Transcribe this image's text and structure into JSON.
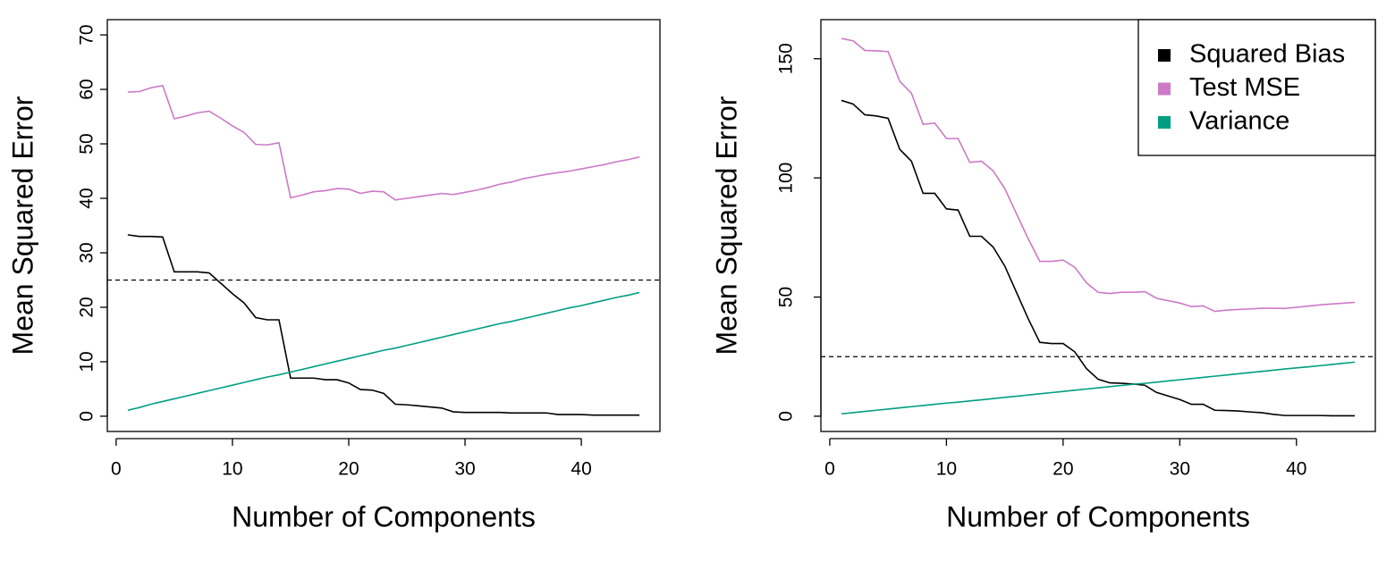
{
  "chart_data": [
    {
      "type": "line",
      "xlabel": "Number of Components",
      "ylabel": "Mean Squared Error",
      "x": [
        1,
        2,
        3,
        4,
        5,
        6,
        7,
        8,
        9,
        10,
        11,
        12,
        13,
        14,
        15,
        16,
        17,
        18,
        19,
        20,
        21,
        22,
        23,
        24,
        25,
        26,
        27,
        28,
        29,
        30,
        31,
        32,
        33,
        34,
        35,
        36,
        37,
        38,
        39,
        40,
        41,
        42,
        43,
        44,
        45
      ],
      "series": [
        {
          "name": "Squared Bias",
          "color": "#000000",
          "values": [
            33.3,
            33.0,
            33.0,
            32.9,
            26.5,
            26.5,
            26.5,
            26.3,
            24.4,
            22.5,
            20.8,
            18.1,
            17.7,
            17.7,
            7.0,
            7.0,
            7.0,
            6.7,
            6.7,
            6.1,
            4.9,
            4.8,
            4.2,
            2.2,
            2.1,
            1.9,
            1.7,
            1.5,
            0.8,
            0.7,
            0.7,
            0.7,
            0.7,
            0.6,
            0.6,
            0.6,
            0.6,
            0.3,
            0.3,
            0.3,
            0.2,
            0.2,
            0.2,
            0.2,
            0.2
          ]
        },
        {
          "name": "Test MSE",
          "color": "#CC79C7",
          "values": [
            59.5,
            59.6,
            60.3,
            60.7,
            54.6,
            55.1,
            55.7,
            56.0,
            54.7,
            53.3,
            52.1,
            49.9,
            49.8,
            50.2,
            40.1,
            40.6,
            41.2,
            41.4,
            41.8,
            41.7,
            40.9,
            41.3,
            41.2,
            39.7,
            40.0,
            40.3,
            40.6,
            40.9,
            40.7,
            41.1,
            41.5,
            42.0,
            42.6,
            43.0,
            43.6,
            44.0,
            44.4,
            44.7,
            45.0,
            45.4,
            45.8,
            46.2,
            46.7,
            47.1,
            47.6
          ]
        },
        {
          "name": "Variance",
          "color": "#009E83",
          "values": [
            1.1,
            1.6,
            2.2,
            2.7,
            3.2,
            3.7,
            4.2,
            4.7,
            5.2,
            5.7,
            6.2,
            6.7,
            7.2,
            7.6,
            8.1,
            8.6,
            9.1,
            9.6,
            10.1,
            10.6,
            11.1,
            11.6,
            12.1,
            12.5,
            13.0,
            13.5,
            14.0,
            14.5,
            15.0,
            15.5,
            16.0,
            16.5,
            17.0,
            17.4,
            17.9,
            18.4,
            18.9,
            19.4,
            19.9,
            20.3,
            20.8,
            21.3,
            21.8,
            22.2,
            22.7
          ]
        }
      ],
      "xlim": [
        -0.76,
        46.76
      ],
      "ylim": [
        -2.8,
        72.8
      ],
      "xticks": [
        0,
        10,
        20,
        30,
        40
      ],
      "yticks": [
        0,
        10,
        20,
        30,
        40,
        50,
        60,
        70
      ],
      "hline": 25
    },
    {
      "type": "line",
      "xlabel": "Number of Components",
      "ylabel": "Mean Squared Error",
      "x": [
        1,
        2,
        3,
        4,
        5,
        6,
        7,
        8,
        9,
        10,
        11,
        12,
        13,
        14,
        15,
        16,
        17,
        18,
        19,
        20,
        21,
        22,
        23,
        24,
        25,
        26,
        27,
        28,
        29,
        30,
        31,
        32,
        33,
        34,
        35,
        36,
        37,
        38,
        39,
        40,
        41,
        42,
        43,
        44,
        45
      ],
      "series": [
        {
          "name": "Squared Bias",
          "color": "#000000",
          "values": [
            132.5,
            131,
            126.5,
            126,
            125,
            112,
            107,
            93.5,
            93.5,
            87,
            86.5,
            75.5,
            75.5,
            71,
            63,
            52,
            41,
            31,
            30.5,
            30.5,
            27,
            20,
            15.5,
            14,
            13.8,
            13.5,
            13,
            10,
            8.5,
            7,
            5,
            5,
            2.5,
            2.4,
            2.2,
            1.8,
            1.5,
            0.8,
            0.3,
            0.3,
            0.3,
            0.3,
            0.2,
            0.2,
            0.2
          ]
        },
        {
          "name": "Test MSE",
          "color": "#CC79C7",
          "values": [
            158.5,
            157.5,
            153.5,
            153.3,
            153,
            140.5,
            135.5,
            122.5,
            123,
            116.5,
            116.5,
            106.5,
            107,
            103,
            95.5,
            85,
            74.5,
            65,
            65,
            65.5,
            62.5,
            56,
            52,
            51.5,
            52,
            52,
            52.3,
            49.5,
            48.5,
            47.5,
            46,
            46.3,
            44,
            44.5,
            44.8,
            45,
            45.3,
            45.3,
            45.2,
            45.7,
            46.2,
            46.7,
            47.1,
            47.4,
            47.8
          ]
        },
        {
          "name": "Variance",
          "color": "#009E83",
          "values": [
            1.0,
            1.5,
            2.0,
            2.5,
            3.0,
            3.5,
            4.0,
            4.5,
            5.0,
            5.5,
            5.9,
            6.4,
            6.9,
            7.4,
            7.9,
            8.4,
            8.9,
            9.4,
            9.9,
            10.4,
            10.9,
            11.4,
            11.9,
            12.4,
            12.9,
            13.4,
            13.8,
            14.3,
            14.8,
            15.3,
            15.8,
            16.3,
            16.8,
            17.3,
            17.8,
            18.3,
            18.8,
            19.3,
            19.8,
            20.3,
            20.7,
            21.2,
            21.7,
            22.2,
            22.7
          ]
        }
      ],
      "xlim": [
        -0.76,
        46.76
      ],
      "ylim": [
        -6.4,
        166.4
      ],
      "xticks": [
        0,
        10,
        20,
        30,
        40
      ],
      "yticks": [
        0,
        50,
        100,
        150
      ],
      "hline": 25,
      "legend": "topright"
    }
  ]
}
